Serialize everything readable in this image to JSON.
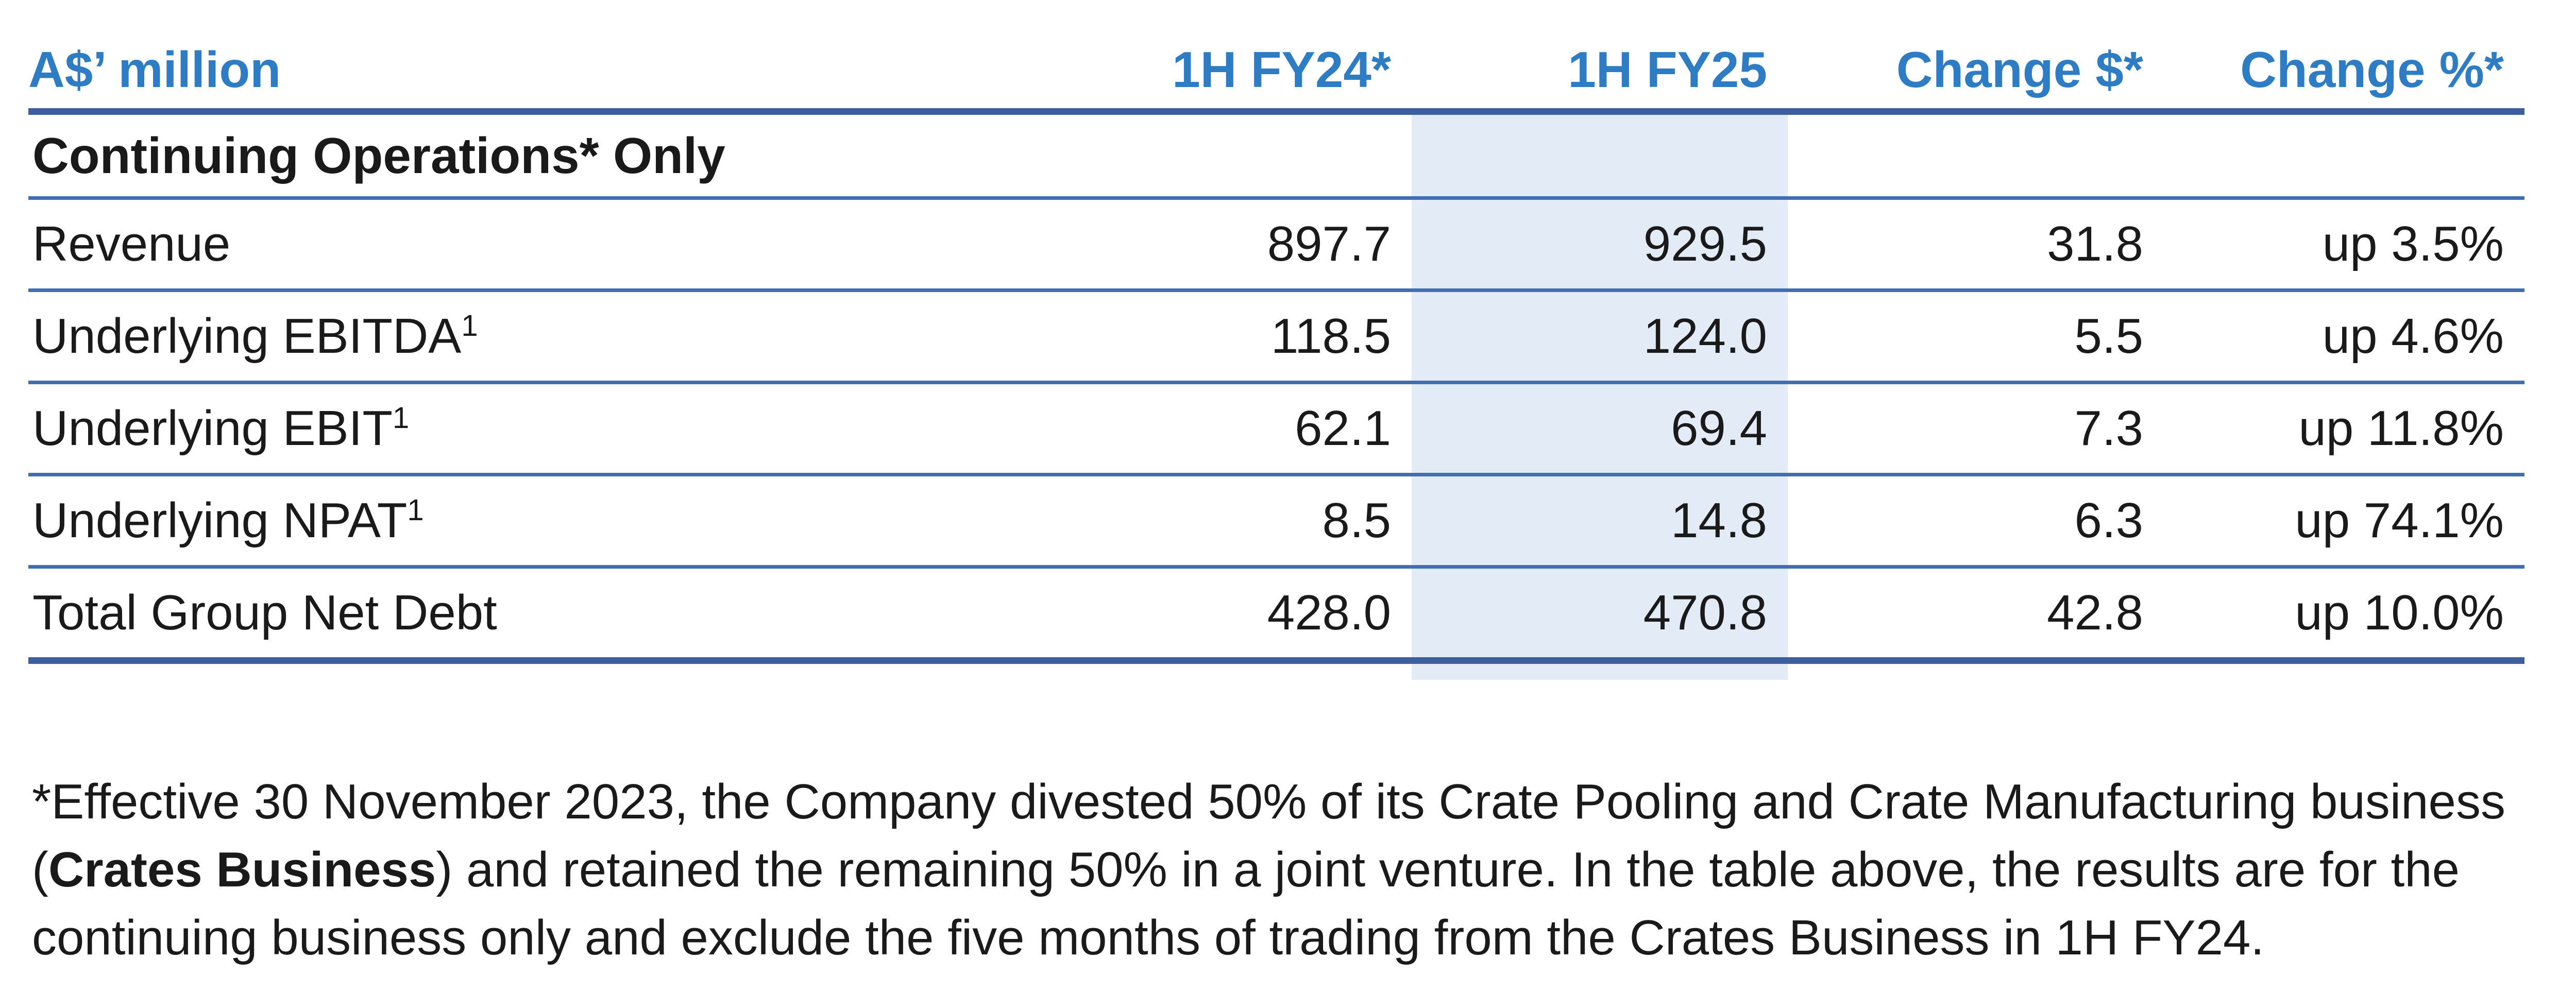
{
  "table": {
    "headers": [
      "A$’ million",
      "1H FY24*",
      "1H FY25",
      "Change $*",
      "Change %*"
    ],
    "section_title": "Continuing Operations* Only",
    "rows": [
      {
        "label": "Revenue",
        "sup": "",
        "fy24": "897.7",
        "fy25": "929.5",
        "change": "31.8",
        "pct": "up 3.5%"
      },
      {
        "label": "Underlying EBITDA",
        "sup": "1",
        "fy24": "118.5",
        "fy25": "124.0",
        "change": "5.5",
        "pct": "up 4.6%"
      },
      {
        "label": "Underlying EBIT",
        "sup": "1",
        "fy24": "62.1",
        "fy25": "69.4",
        "change": "7.3",
        "pct": "up 11.8%"
      },
      {
        "label": "Underlying NPAT",
        "sup": "1",
        "fy24": "8.5",
        "fy25": "14.8",
        "change": "6.3",
        "pct": "up 74.1%"
      },
      {
        "label": "Total Group Net Debt",
        "sup": "",
        "fy24": "428.0",
        "fy25": "470.8",
        "change": "42.8",
        "pct": "up 10.0%"
      }
    ]
  },
  "footnote": {
    "part1": "*Effective 30 November 2023, the Company divested 50% of its Crate Pooling and Crate Manufacturing business (",
    "bold": "Crates Business",
    "part2": ") and retained the remaining 50% in a joint venture. In the table above, the results are for the continuing business only and exclude the five months of trading from the Crates Business in 1H FY24."
  },
  "colors": {
    "header_text": "#2e7dc4",
    "rule": "#3d5f9e",
    "highlight": "#e3ebf7"
  }
}
